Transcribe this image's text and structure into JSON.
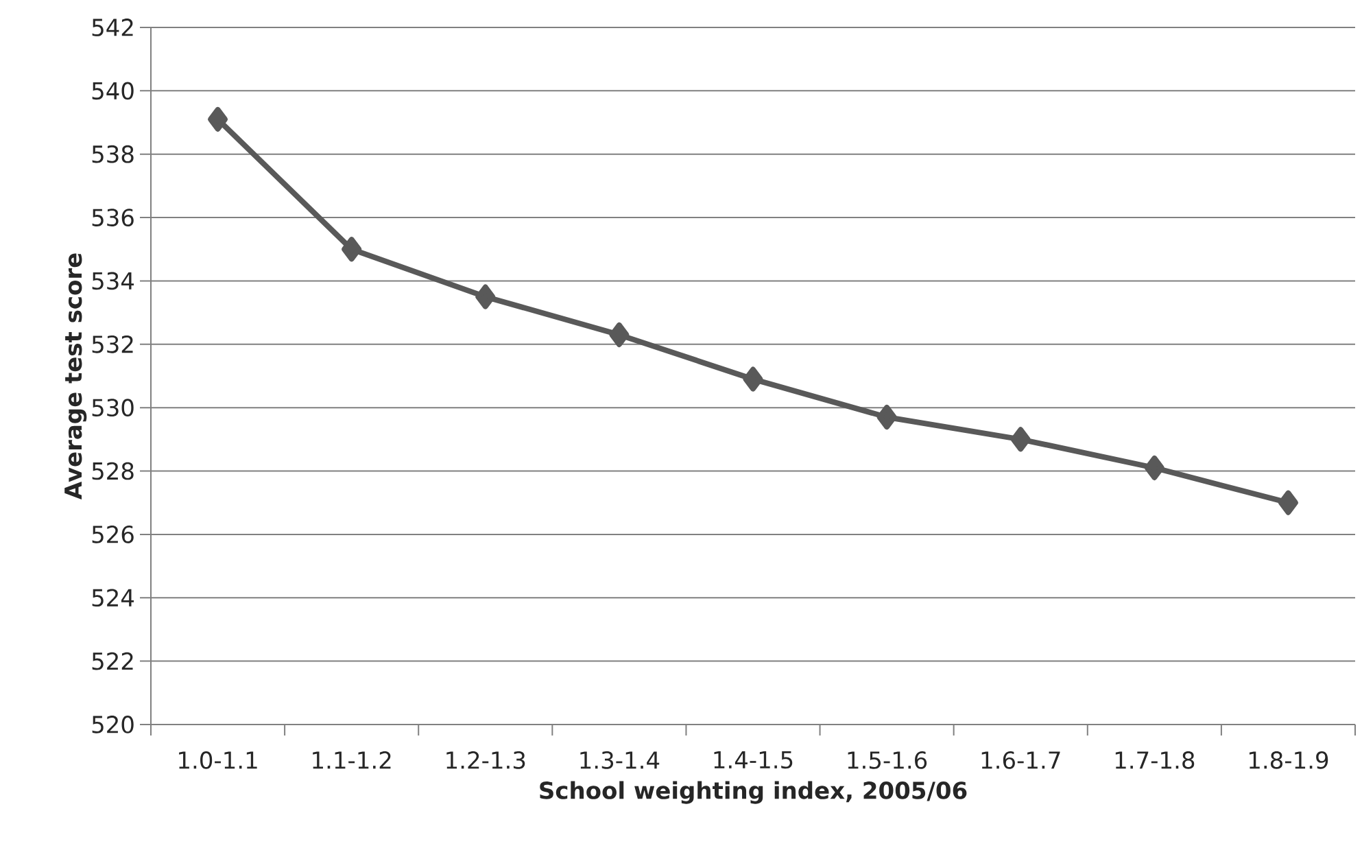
{
  "chart_data": {
    "type": "line",
    "xlabel": "School weighting index, 2005/06",
    "ylabel": "Average test score",
    "categories": [
      "1.0-1.1",
      "1.1-1.2",
      "1.2-1.3",
      "1.3-1.4",
      "1.4-1.5",
      "1.5-1.6",
      "1.6-1.7",
      "1.7-1.8",
      "1.8-1.9"
    ],
    "series": [
      {
        "color": "#595959",
        "values": [
          539.1,
          535.0,
          533.5,
          532.3,
          530.9,
          529.7,
          529.0,
          528.1,
          527.0
        ]
      }
    ],
    "ylim": [
      520,
      542
    ],
    "yticks": [
      520,
      522,
      524,
      526,
      528,
      530,
      532,
      534,
      536,
      538,
      540,
      542
    ],
    "grid": "y",
    "marker": "diamond",
    "line_style": "solid"
  }
}
